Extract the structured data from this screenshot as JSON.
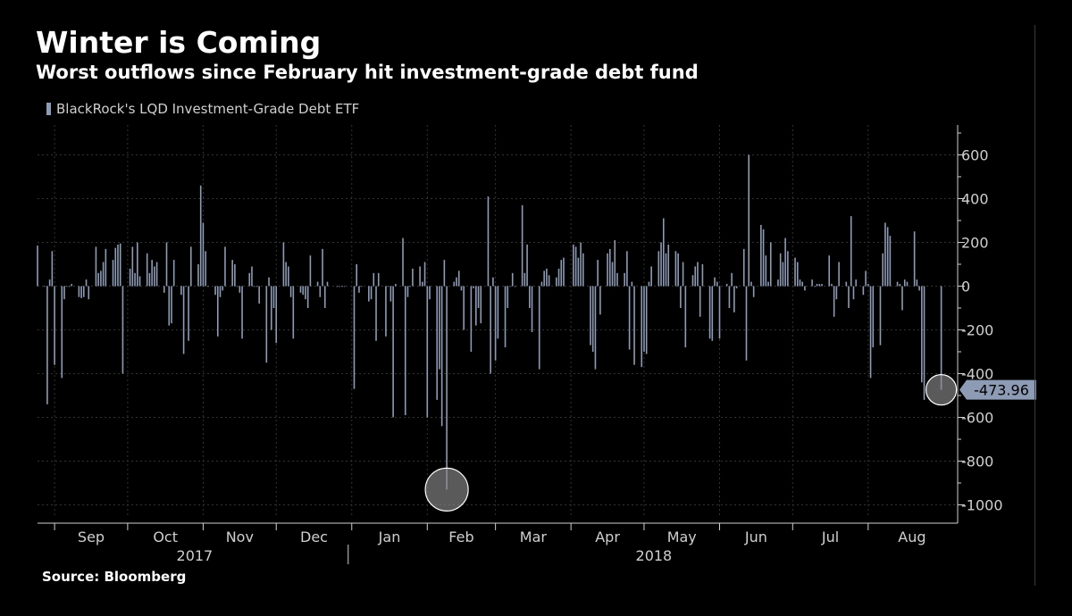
{
  "title": "Winter is Coming",
  "subtitle": "Worst outflows since February hit investment-grade debt fund",
  "source": "Source: Bloomberg",
  "legend_label": "BlackRock's LQD Investment-Grade Debt ETF",
  "colors": {
    "background": "#000000",
    "bar": "#8d9bb5",
    "callout_bg": "#8d9bb5",
    "callout_text": "#000000",
    "axis": "#cfcfcf",
    "gridline": "#333333",
    "highlight_circle_fill": "#8a8a8a",
    "highlight_circle_stroke": "#ffffff"
  },
  "chart_data": {
    "type": "bar",
    "y_axis_position": "right",
    "ylim": [
      -1060,
      720
    ],
    "yticks": [
      600,
      400,
      200,
      0,
      -200,
      -400,
      -600,
      -800,
      -1000
    ],
    "grid": true,
    "legend_position": "top-left",
    "x_start": "2017-08-25",
    "x_end": "2018-09-06",
    "months": [
      {
        "label": "Sep",
        "date": "2017-09-01"
      },
      {
        "label": "Oct",
        "date": "2017-10-01"
      },
      {
        "label": "Nov",
        "date": "2017-11-01"
      },
      {
        "label": "Dec",
        "date": "2017-12-01"
      },
      {
        "label": "Jan",
        "date": "2018-01-01"
      },
      {
        "label": "Feb",
        "date": "2018-02-01"
      },
      {
        "label": "Mar",
        "date": "2018-03-01"
      },
      {
        "label": "Apr",
        "date": "2018-04-01"
      },
      {
        "label": "May",
        "date": "2018-05-01"
      },
      {
        "label": "Jun",
        "date": "2018-06-01"
      },
      {
        "label": "Jul",
        "date": "2018-07-01"
      },
      {
        "label": "Aug",
        "date": "2018-08-01"
      }
    ],
    "years": [
      {
        "label": "2017",
        "from": "2017-08-25",
        "to": "2018-01-01"
      },
      {
        "label": "2018",
        "from": "2018-01-01",
        "to": "2018-09-06"
      }
    ],
    "last_value_label": "-473.96",
    "highlight_dates": [
      "2018-02-09",
      "2018-08-31"
    ],
    "series": [
      {
        "name": "BlackRock's LQD Investment-Grade Debt ETF",
        "values": [
          [
            "2017-08-25",
            185
          ],
          [
            "2017-08-28",
            0
          ],
          [
            "2017-08-29",
            -540
          ],
          [
            "2017-08-30",
            30
          ],
          [
            "2017-08-31",
            160
          ],
          [
            "2017-09-01",
            -360
          ],
          [
            "2017-09-04",
            -420
          ],
          [
            "2017-09-05",
            -60
          ],
          [
            "2017-09-06",
            0
          ],
          [
            "2017-09-07",
            0
          ],
          [
            "2017-09-08",
            10
          ],
          [
            "2017-09-11",
            -50
          ],
          [
            "2017-09-12",
            -55
          ],
          [
            "2017-09-13",
            -50
          ],
          [
            "2017-09-14",
            30
          ],
          [
            "2017-09-15",
            -60
          ],
          [
            "2017-09-18",
            180
          ],
          [
            "2017-09-19",
            60
          ],
          [
            "2017-09-20",
            70
          ],
          [
            "2017-09-21",
            110
          ],
          [
            "2017-09-22",
            170
          ],
          [
            "2017-09-25",
            120
          ],
          [
            "2017-09-26",
            175
          ],
          [
            "2017-09-27",
            190
          ],
          [
            "2017-09-28",
            195
          ],
          [
            "2017-09-29",
            -400
          ],
          [
            "2017-10-02",
            80
          ],
          [
            "2017-10-03",
            180
          ],
          [
            "2017-10-04",
            60
          ],
          [
            "2017-10-05",
            200
          ],
          [
            "2017-10-06",
            45
          ],
          [
            "2017-10-09",
            150
          ],
          [
            "2017-10-10",
            60
          ],
          [
            "2017-10-11",
            120
          ],
          [
            "2017-10-12",
            90
          ],
          [
            "2017-10-13",
            110
          ],
          [
            "2017-10-16",
            -30
          ],
          [
            "2017-10-17",
            200
          ],
          [
            "2017-10-18",
            -180
          ],
          [
            "2017-10-19",
            -170
          ],
          [
            "2017-10-20",
            120
          ],
          [
            "2017-10-23",
            -40
          ],
          [
            "2017-10-24",
            -310
          ],
          [
            "2017-10-25",
            0
          ],
          [
            "2017-10-26",
            -250
          ],
          [
            "2017-10-27",
            180
          ],
          [
            "2017-10-30",
            100
          ],
          [
            "2017-10-31",
            460
          ],
          [
            "2017-11-01",
            290
          ],
          [
            "2017-11-02",
            160
          ],
          [
            "2017-11-03",
            0
          ],
          [
            "2017-11-06",
            -40
          ],
          [
            "2017-11-07",
            -230
          ],
          [
            "2017-11-08",
            -50
          ],
          [
            "2017-11-09",
            -20
          ],
          [
            "2017-11-10",
            180
          ],
          [
            "2017-11-13",
            120
          ],
          [
            "2017-11-14",
            100
          ],
          [
            "2017-11-15",
            0
          ],
          [
            "2017-11-16",
            -30
          ],
          [
            "2017-11-17",
            -240
          ],
          [
            "2017-11-20",
            60
          ],
          [
            "2017-11-21",
            90
          ],
          [
            "2017-11-22",
            0
          ],
          [
            "2017-11-23",
            0
          ],
          [
            "2017-11-24",
            -80
          ],
          [
            "2017-11-27",
            -350
          ],
          [
            "2017-11-28",
            40
          ],
          [
            "2017-11-29",
            -200
          ],
          [
            "2017-11-30",
            -100
          ],
          [
            "2017-12-01",
            -260
          ],
          [
            "2017-12-04",
            200
          ],
          [
            "2017-12-05",
            110
          ],
          [
            "2017-12-06",
            90
          ],
          [
            "2017-12-07",
            -50
          ],
          [
            "2017-12-08",
            -240
          ],
          [
            "2017-12-11",
            -30
          ],
          [
            "2017-12-12",
            -40
          ],
          [
            "2017-12-13",
            -60
          ],
          [
            "2017-12-14",
            -100
          ],
          [
            "2017-12-15",
            140
          ],
          [
            "2017-12-18",
            20
          ],
          [
            "2017-12-19",
            -50
          ],
          [
            "2017-12-20",
            170
          ],
          [
            "2017-12-21",
            -100
          ],
          [
            "2017-12-22",
            20
          ],
          [
            "2017-12-26",
            0
          ],
          [
            "2017-12-27",
            0
          ],
          [
            "2017-12-28",
            0
          ],
          [
            "2017-12-29",
            0
          ],
          [
            "2018-01-02",
            -470
          ],
          [
            "2018-01-03",
            100
          ],
          [
            "2018-01-04",
            -30
          ],
          [
            "2018-01-05",
            0
          ],
          [
            "2018-01-08",
            -70
          ],
          [
            "2018-01-09",
            -60
          ],
          [
            "2018-01-10",
            60
          ],
          [
            "2018-01-11",
            -250
          ],
          [
            "2018-01-12",
            60
          ],
          [
            "2018-01-15",
            -230
          ],
          [
            "2018-01-16",
            0
          ],
          [
            "2018-01-17",
            -70
          ],
          [
            "2018-01-18",
            -600
          ],
          [
            "2018-01-19",
            10
          ],
          [
            "2018-01-22",
            220
          ],
          [
            "2018-01-23",
            -590
          ],
          [
            "2018-01-24",
            -50
          ],
          [
            "2018-01-25",
            0
          ],
          [
            "2018-01-26",
            80
          ],
          [
            "2018-01-29",
            90
          ],
          [
            "2018-01-30",
            20
          ],
          [
            "2018-01-31",
            110
          ],
          [
            "2018-02-01",
            -600
          ],
          [
            "2018-02-02",
            -60
          ],
          [
            "2018-02-05",
            -520
          ],
          [
            "2018-02-06",
            -380
          ],
          [
            "2018-02-07",
            -640
          ],
          [
            "2018-02-08",
            120
          ],
          [
            "2018-02-09",
            -930
          ],
          [
            "2018-02-12",
            20
          ],
          [
            "2018-02-13",
            40
          ],
          [
            "2018-02-14",
            70
          ],
          [
            "2018-02-15",
            -20
          ],
          [
            "2018-02-16",
            -200
          ],
          [
            "2018-02-19",
            -300
          ],
          [
            "2018-02-20",
            -10
          ],
          [
            "2018-02-21",
            -180
          ],
          [
            "2018-02-22",
            -100
          ],
          [
            "2018-02-23",
            -170
          ],
          [
            "2018-02-26",
            410
          ],
          [
            "2018-02-27",
            -400
          ],
          [
            "2018-02-28",
            40
          ],
          [
            "2018-03-01",
            -340
          ],
          [
            "2018-03-02",
            -240
          ],
          [
            "2018-03-05",
            -280
          ],
          [
            "2018-03-06",
            -100
          ],
          [
            "2018-03-07",
            0
          ],
          [
            "2018-03-08",
            60
          ],
          [
            "2018-03-09",
            0
          ],
          [
            "2018-03-12",
            370
          ],
          [
            "2018-03-13",
            60
          ],
          [
            "2018-03-14",
            190
          ],
          [
            "2018-03-15",
            -100
          ],
          [
            "2018-03-16",
            -210
          ],
          [
            "2018-03-19",
            -380
          ],
          [
            "2018-03-20",
            20
          ],
          [
            "2018-03-21",
            70
          ],
          [
            "2018-03-22",
            80
          ],
          [
            "2018-03-23",
            50
          ],
          [
            "2018-03-26",
            40
          ],
          [
            "2018-03-27",
            80
          ],
          [
            "2018-03-28",
            120
          ],
          [
            "2018-03-29",
            130
          ],
          [
            "2018-04-02",
            190
          ],
          [
            "2018-04-03",
            180
          ],
          [
            "2018-04-04",
            130
          ],
          [
            "2018-04-05",
            200
          ],
          [
            "2018-04-06",
            150
          ],
          [
            "2018-04-09",
            -270
          ],
          [
            "2018-04-10",
            -300
          ],
          [
            "2018-04-11",
            -380
          ],
          [
            "2018-04-12",
            120
          ],
          [
            "2018-04-13",
            -130
          ],
          [
            "2018-04-16",
            150
          ],
          [
            "2018-04-17",
            170
          ],
          [
            "2018-04-18",
            110
          ],
          [
            "2018-04-19",
            210
          ],
          [
            "2018-04-20",
            60
          ],
          [
            "2018-04-23",
            60
          ],
          [
            "2018-04-24",
            160
          ],
          [
            "2018-04-25",
            -290
          ],
          [
            "2018-04-26",
            20
          ],
          [
            "2018-04-27",
            -360
          ],
          [
            "2018-04-30",
            -370
          ],
          [
            "2018-05-01",
            -300
          ],
          [
            "2018-05-02",
            -310
          ],
          [
            "2018-05-03",
            20
          ],
          [
            "2018-05-04",
            90
          ],
          [
            "2018-05-07",
            160
          ],
          [
            "2018-05-08",
            200
          ],
          [
            "2018-05-09",
            310
          ],
          [
            "2018-05-10",
            150
          ],
          [
            "2018-05-11",
            190
          ],
          [
            "2018-05-14",
            160
          ],
          [
            "2018-05-15",
            150
          ],
          [
            "2018-05-16",
            -100
          ],
          [
            "2018-05-17",
            110
          ],
          [
            "2018-05-18",
            -280
          ],
          [
            "2018-05-21",
            50
          ],
          [
            "2018-05-22",
            90
          ],
          [
            "2018-05-23",
            110
          ],
          [
            "2018-05-24",
            -140
          ],
          [
            "2018-05-25",
            100
          ],
          [
            "2018-05-28",
            -240
          ],
          [
            "2018-05-29",
            -250
          ],
          [
            "2018-05-30",
            40
          ],
          [
            "2018-05-31",
            20
          ],
          [
            "2018-06-01",
            -240
          ],
          [
            "2018-06-04",
            10
          ],
          [
            "2018-06-05",
            -100
          ],
          [
            "2018-06-06",
            60
          ],
          [
            "2018-06-07",
            -120
          ],
          [
            "2018-06-08",
            -10
          ],
          [
            "2018-06-11",
            170
          ],
          [
            "2018-06-12",
            -340
          ],
          [
            "2018-06-13",
            600
          ],
          [
            "2018-06-14",
            20
          ],
          [
            "2018-06-15",
            -50
          ],
          [
            "2018-06-18",
            280
          ],
          [
            "2018-06-19",
            260
          ],
          [
            "2018-06-20",
            140
          ],
          [
            "2018-06-21",
            20
          ],
          [
            "2018-06-22",
            200
          ],
          [
            "2018-06-25",
            30
          ],
          [
            "2018-06-26",
            150
          ],
          [
            "2018-06-27",
            110
          ],
          [
            "2018-06-28",
            220
          ],
          [
            "2018-06-29",
            160
          ],
          [
            "2018-07-02",
            130
          ],
          [
            "2018-07-03",
            110
          ],
          [
            "2018-07-04",
            30
          ],
          [
            "2018-07-05",
            20
          ],
          [
            "2018-07-06",
            -20
          ],
          [
            "2018-07-09",
            30
          ],
          [
            "2018-07-10",
            0
          ],
          [
            "2018-07-11",
            10
          ],
          [
            "2018-07-12",
            10
          ],
          [
            "2018-07-13",
            10
          ],
          [
            "2018-07-16",
            140
          ],
          [
            "2018-07-17",
            10
          ],
          [
            "2018-07-18",
            -140
          ],
          [
            "2018-07-19",
            -60
          ],
          [
            "2018-07-20",
            110
          ],
          [
            "2018-07-23",
            20
          ],
          [
            "2018-07-24",
            -100
          ],
          [
            "2018-07-25",
            320
          ],
          [
            "2018-07-26",
            -60
          ],
          [
            "2018-07-27",
            30
          ],
          [
            "2018-07-30",
            -40
          ],
          [
            "2018-07-31",
            70
          ],
          [
            "2018-08-01",
            10
          ],
          [
            "2018-08-02",
            -420
          ],
          [
            "2018-08-03",
            -280
          ],
          [
            "2018-08-06",
            -270
          ],
          [
            "2018-08-07",
            150
          ],
          [
            "2018-08-08",
            290
          ],
          [
            "2018-08-09",
            270
          ],
          [
            "2018-08-10",
            230
          ],
          [
            "2018-08-13",
            20
          ],
          [
            "2018-08-14",
            10
          ],
          [
            "2018-08-15",
            -110
          ],
          [
            "2018-08-16",
            30
          ],
          [
            "2018-08-17",
            20
          ],
          [
            "2018-08-20",
            250
          ],
          [
            "2018-08-21",
            30
          ],
          [
            "2018-08-22",
            -20
          ],
          [
            "2018-08-23",
            -440
          ],
          [
            "2018-08-24",
            -520
          ],
          [
            "2018-08-31",
            -473.96
          ]
        ]
      }
    ]
  }
}
